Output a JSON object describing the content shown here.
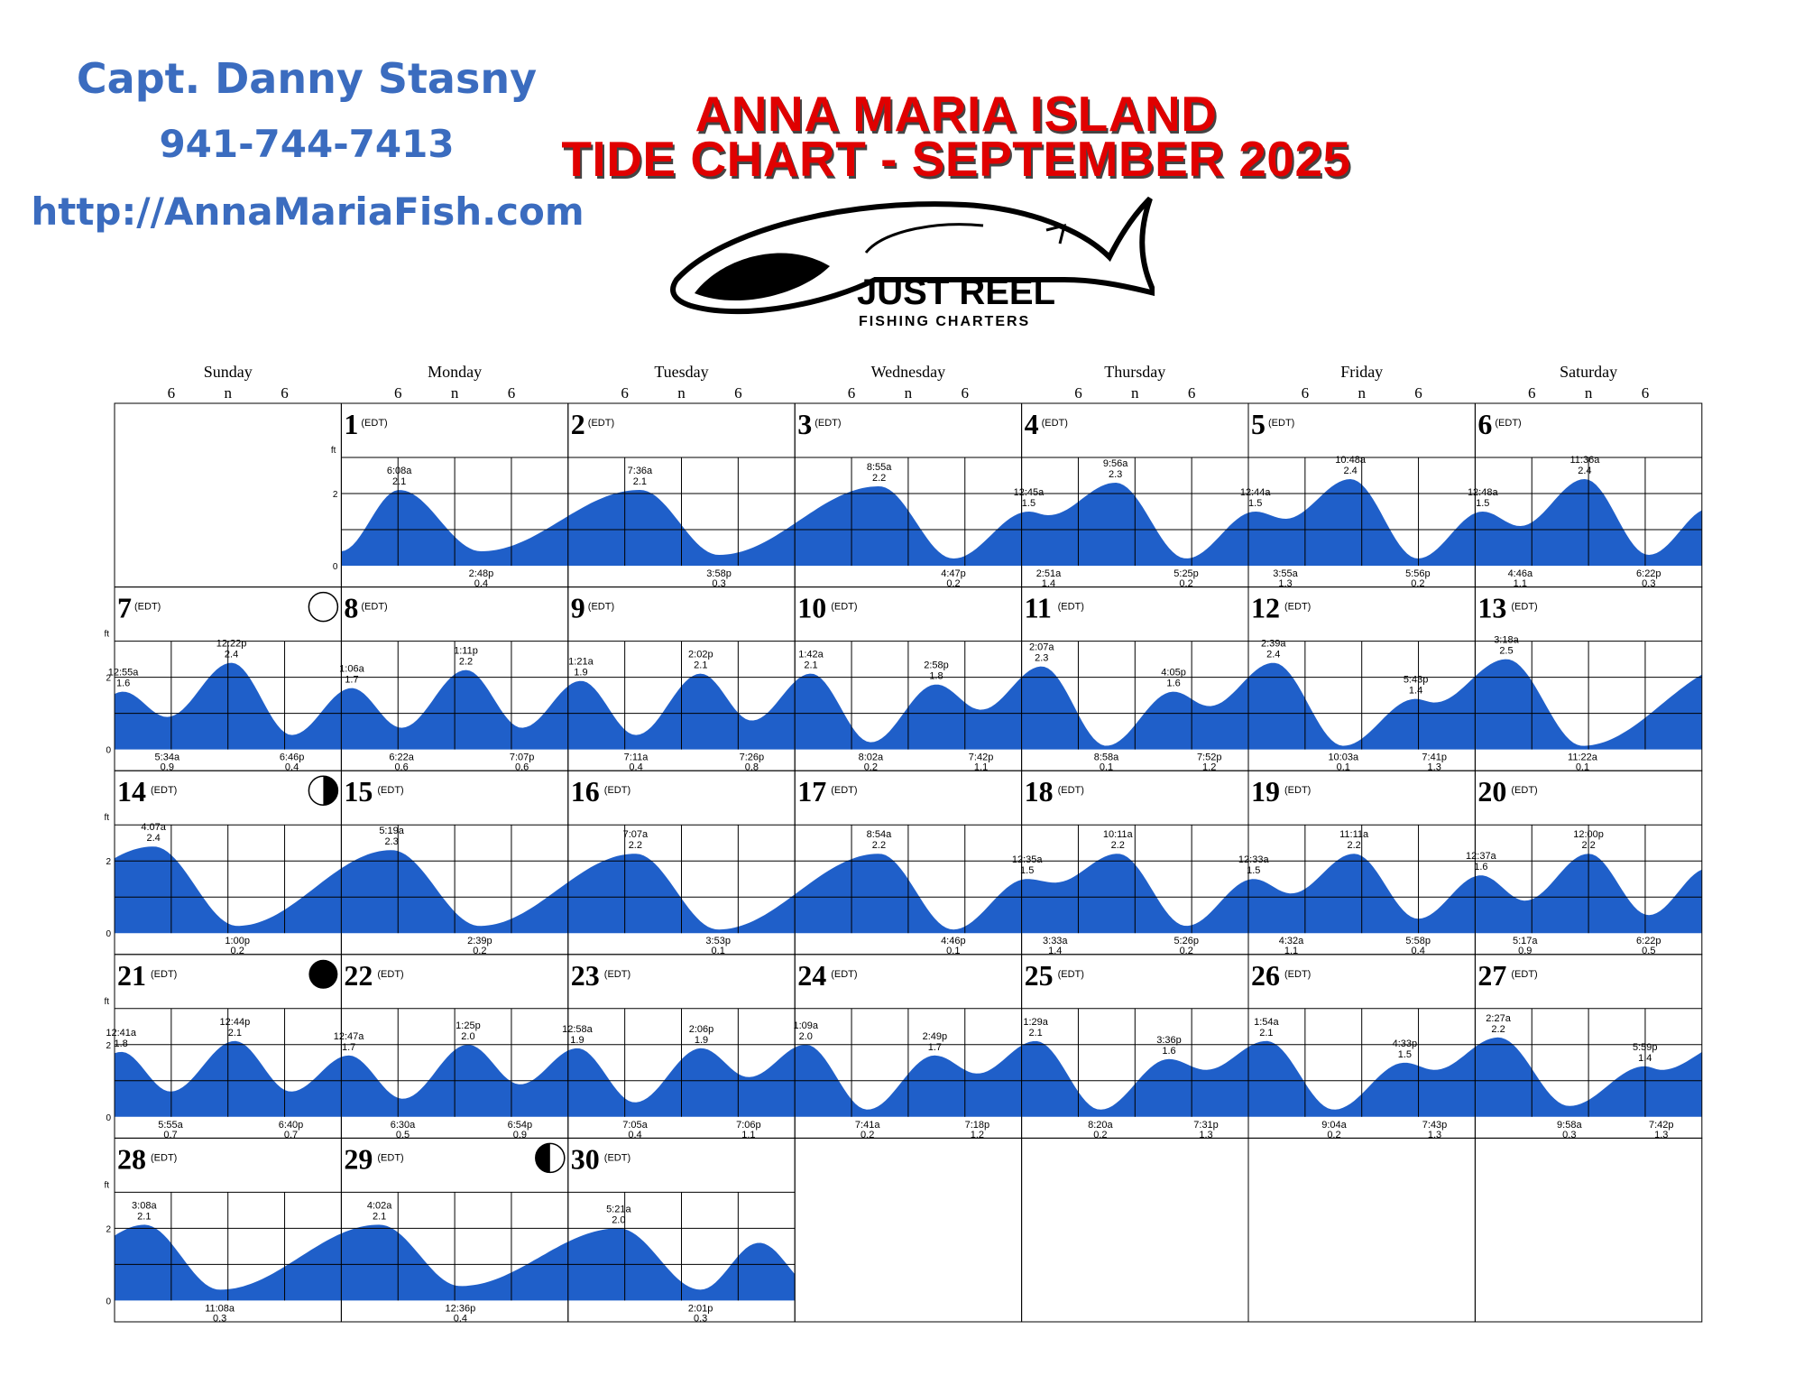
{
  "contact": {
    "captain": "Capt. Danny Stasny",
    "phone": "941-744-7413",
    "website": "http://AnnaMariaFish.com"
  },
  "title": {
    "line1": "ANNA MARIA ISLAND",
    "line2": "TIDE CHART - SEPTEMBER 2025"
  },
  "logo": {
    "icon": "fish-icon",
    "name": "JUST REEL",
    "tagline": "FISHING CHARTERS"
  },
  "colors": {
    "tide_fill": "#1f5fc9",
    "title": "#e00000",
    "contact": "#3b6cbf"
  },
  "chart_data": {
    "type": "area",
    "title": "TIDE CHART - SEPTEMBER 2025",
    "weekdays": [
      "Sunday",
      "Monday",
      "Tuesday",
      "Wednesday",
      "Thursday",
      "Friday",
      "Saturday"
    ],
    "hour_ticks": [
      "6",
      "n",
      "6"
    ],
    "y_unit": "ft",
    "yticks": [
      "2",
      "0"
    ],
    "ylim": [
      0,
      3
    ],
    "zone_label": "(EDT)",
    "first_weekday_index": 1,
    "days": [
      {
        "day": 1,
        "moon": null,
        "tides": [
          {
            "t": "6:08a",
            "h": 2.1,
            "type": "H"
          },
          {
            "t": "2:48p",
            "h": 0.4,
            "type": "L"
          }
        ]
      },
      {
        "day": 2,
        "moon": null,
        "tides": [
          {
            "t": "7:36a",
            "h": 2.1,
            "type": "H"
          },
          {
            "t": "3:58p",
            "h": 0.3,
            "type": "L"
          }
        ]
      },
      {
        "day": 3,
        "moon": null,
        "tides": [
          {
            "t": "8:55a",
            "h": 2.2,
            "type": "H"
          },
          {
            "t": "4:47p",
            "h": 0.2,
            "type": "L"
          }
        ]
      },
      {
        "day": 4,
        "moon": null,
        "tides": [
          {
            "t": "12:45a",
            "h": 1.5,
            "type": "H"
          },
          {
            "t": "2:51a",
            "h": 1.4,
            "type": "L"
          },
          {
            "t": "9:56a",
            "h": 2.3,
            "type": "H"
          },
          {
            "t": "5:25p",
            "h": 0.2,
            "type": "L"
          }
        ]
      },
      {
        "day": 5,
        "moon": null,
        "tides": [
          {
            "t": "12:44a",
            "h": 1.5,
            "type": "H"
          },
          {
            "t": "3:55a",
            "h": 1.3,
            "type": "L"
          },
          {
            "t": "10:48a",
            "h": 2.4,
            "type": "H"
          },
          {
            "t": "5:56p",
            "h": 0.2,
            "type": "L"
          }
        ]
      },
      {
        "day": 6,
        "moon": null,
        "tides": [
          {
            "t": "12:48a",
            "h": 1.5,
            "type": "H"
          },
          {
            "t": "4:46a",
            "h": 1.1,
            "type": "L"
          },
          {
            "t": "11:36a",
            "h": 2.4,
            "type": "H"
          },
          {
            "t": "6:22p",
            "h": 0.3,
            "type": "L"
          }
        ]
      },
      {
        "day": 7,
        "moon": "full",
        "tides": [
          {
            "t": "12:55a",
            "h": 1.6,
            "type": "H"
          },
          {
            "t": "5:34a",
            "h": 0.9,
            "type": "L"
          },
          {
            "t": "12:22p",
            "h": 2.4,
            "type": "H"
          },
          {
            "t": "6:46p",
            "h": 0.4,
            "type": "L"
          }
        ]
      },
      {
        "day": 8,
        "moon": null,
        "tides": [
          {
            "t": "1:06a",
            "h": 1.7,
            "type": "H"
          },
          {
            "t": "6:22a",
            "h": 0.6,
            "type": "L"
          },
          {
            "t": "1:11p",
            "h": 2.2,
            "type": "H"
          },
          {
            "t": "7:07p",
            "h": 0.6,
            "type": "L"
          }
        ]
      },
      {
        "day": 9,
        "moon": null,
        "tides": [
          {
            "t": "1:21a",
            "h": 1.9,
            "type": "H"
          },
          {
            "t": "7:11a",
            "h": 0.4,
            "type": "L"
          },
          {
            "t": "2:02p",
            "h": 2.1,
            "type": "H"
          },
          {
            "t": "7:26p",
            "h": 0.8,
            "type": "L"
          }
        ]
      },
      {
        "day": 10,
        "moon": null,
        "tides": [
          {
            "t": "1:42a",
            "h": 2.1,
            "type": "H"
          },
          {
            "t": "8:02a",
            "h": 0.2,
            "type": "L"
          },
          {
            "t": "2:58p",
            "h": 1.8,
            "type": "H"
          },
          {
            "t": "7:42p",
            "h": 1.1,
            "type": "L"
          }
        ]
      },
      {
        "day": 11,
        "moon": null,
        "tides": [
          {
            "t": "2:07a",
            "h": 2.3,
            "type": "H"
          },
          {
            "t": "8:58a",
            "h": 0.1,
            "type": "L"
          },
          {
            "t": "4:05p",
            "h": 1.6,
            "type": "H"
          },
          {
            "t": "7:52p",
            "h": 1.2,
            "type": "L"
          }
        ]
      },
      {
        "day": 12,
        "moon": null,
        "tides": [
          {
            "t": "2:39a",
            "h": 2.4,
            "type": "H"
          },
          {
            "t": "10:03a",
            "h": 0.1,
            "type": "L"
          },
          {
            "t": "5:43p",
            "h": 1.4,
            "type": "H"
          },
          {
            "t": "7:41p",
            "h": 1.3,
            "type": "L"
          }
        ]
      },
      {
        "day": 13,
        "moon": null,
        "tides": [
          {
            "t": "3:18a",
            "h": 2.5,
            "type": "H"
          },
          {
            "t": "11:22a",
            "h": 0.1,
            "type": "L"
          }
        ]
      },
      {
        "day": 14,
        "moon": "last-quarter",
        "tides": [
          {
            "t": "4:07a",
            "h": 2.4,
            "type": "H"
          },
          {
            "t": "1:00p",
            "h": 0.2,
            "type": "L"
          }
        ]
      },
      {
        "day": 15,
        "moon": null,
        "tides": [
          {
            "t": "5:19a",
            "h": 2.3,
            "type": "H"
          },
          {
            "t": "2:39p",
            "h": 0.2,
            "type": "L"
          }
        ]
      },
      {
        "day": 16,
        "moon": null,
        "tides": [
          {
            "t": "7:07a",
            "h": 2.2,
            "type": "H"
          },
          {
            "t": "3:53p",
            "h": 0.1,
            "type": "L"
          }
        ]
      },
      {
        "day": 17,
        "moon": null,
        "tides": [
          {
            "t": "8:54a",
            "h": 2.2,
            "type": "H"
          },
          {
            "t": "4:46p",
            "h": 0.1,
            "type": "L"
          }
        ]
      },
      {
        "day": 18,
        "moon": null,
        "tides": [
          {
            "t": "12:35a",
            "h": 1.5,
            "type": "H"
          },
          {
            "t": "3:33a",
            "h": 1.4,
            "type": "L"
          },
          {
            "t": "10:11a",
            "h": 2.2,
            "type": "H"
          },
          {
            "t": "5:26p",
            "h": 0.2,
            "type": "L"
          }
        ]
      },
      {
        "day": 19,
        "moon": null,
        "tides": [
          {
            "t": "12:33a",
            "h": 1.5,
            "type": "H"
          },
          {
            "t": "4:32a",
            "h": 1.1,
            "type": "L"
          },
          {
            "t": "11:11a",
            "h": 2.2,
            "type": "H"
          },
          {
            "t": "5:58p",
            "h": 0.4,
            "type": "L"
          }
        ]
      },
      {
        "day": 20,
        "moon": null,
        "tides": [
          {
            "t": "12:37a",
            "h": 1.6,
            "type": "H"
          },
          {
            "t": "5:17a",
            "h": 0.9,
            "type": "L"
          },
          {
            "t": "12:00p",
            "h": 2.2,
            "type": "H"
          },
          {
            "t": "6:22p",
            "h": 0.5,
            "type": "L"
          }
        ]
      },
      {
        "day": 21,
        "moon": "new",
        "tides": [
          {
            "t": "12:41a",
            "h": 1.8,
            "type": "H"
          },
          {
            "t": "5:55a",
            "h": 0.7,
            "type": "L"
          },
          {
            "t": "12:44p",
            "h": 2.1,
            "type": "H"
          },
          {
            "t": "6:40p",
            "h": 0.7,
            "type": "L"
          }
        ]
      },
      {
        "day": 22,
        "moon": null,
        "tides": [
          {
            "t": "12:47a",
            "h": 1.7,
            "type": "H"
          },
          {
            "t": "6:30a",
            "h": 0.5,
            "type": "L"
          },
          {
            "t": "1:25p",
            "h": 2.0,
            "type": "H"
          },
          {
            "t": "6:54p",
            "h": 0.9,
            "type": "L"
          }
        ]
      },
      {
        "day": 23,
        "moon": null,
        "tides": [
          {
            "t": "12:58a",
            "h": 1.9,
            "type": "H"
          },
          {
            "t": "7:05a",
            "h": 0.4,
            "type": "L"
          },
          {
            "t": "2:06p",
            "h": 1.9,
            "type": "H"
          },
          {
            "t": "7:06p",
            "h": 1.1,
            "type": "L"
          }
        ]
      },
      {
        "day": 24,
        "moon": null,
        "tides": [
          {
            "t": "1:09a",
            "h": 2.0,
            "type": "H"
          },
          {
            "t": "7:41a",
            "h": 0.2,
            "type": "L"
          },
          {
            "t": "2:49p",
            "h": 1.7,
            "type": "H"
          },
          {
            "t": "7:18p",
            "h": 1.2,
            "type": "L"
          }
        ]
      },
      {
        "day": 25,
        "moon": null,
        "tides": [
          {
            "t": "1:29a",
            "h": 2.1,
            "type": "H"
          },
          {
            "t": "8:20a",
            "h": 0.2,
            "type": "L"
          },
          {
            "t": "3:36p",
            "h": 1.6,
            "type": "H"
          },
          {
            "t": "7:31p",
            "h": 1.3,
            "type": "L"
          }
        ]
      },
      {
        "day": 26,
        "moon": null,
        "tides": [
          {
            "t": "1:54a",
            "h": 2.1,
            "type": "H"
          },
          {
            "t": "9:04a",
            "h": 0.2,
            "type": "L"
          },
          {
            "t": "4:33p",
            "h": 1.5,
            "type": "H"
          },
          {
            "t": "7:43p",
            "h": 1.3,
            "type": "L"
          }
        ]
      },
      {
        "day": 27,
        "moon": null,
        "tides": [
          {
            "t": "2:27a",
            "h": 2.2,
            "type": "H"
          },
          {
            "t": "9:58a",
            "h": 0.3,
            "type": "L"
          },
          {
            "t": "5:59p",
            "h": 1.4,
            "type": "H"
          },
          {
            "t": "7:42p",
            "h": 1.3,
            "type": "L"
          }
        ]
      },
      {
        "day": 28,
        "moon": null,
        "tides": [
          {
            "t": "3:08a",
            "h": 2.1,
            "type": "H"
          },
          {
            "t": "11:08a",
            "h": 0.3,
            "type": "L"
          }
        ]
      },
      {
        "day": 29,
        "moon": "first-quarter",
        "tides": [
          {
            "t": "4:02a",
            "h": 2.1,
            "type": "H"
          },
          {
            "t": "12:36p",
            "h": 0.4,
            "type": "L"
          }
        ]
      },
      {
        "day": 30,
        "moon": null,
        "tides": [
          {
            "t": "5:21a",
            "h": 2.0,
            "type": "H"
          },
          {
            "t": "2:01p",
            "h": 0.3,
            "type": "L"
          }
        ]
      }
    ]
  }
}
